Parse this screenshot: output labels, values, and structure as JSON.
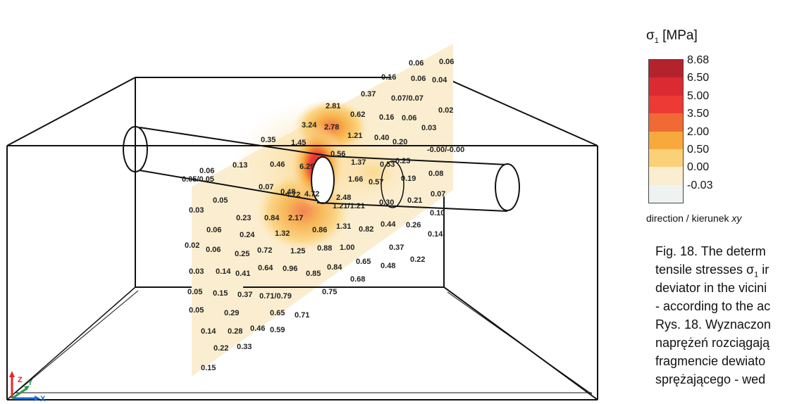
{
  "legend": {
    "symbol": "σ",
    "subscript": "1",
    "unit": "[MPa]",
    "entries": [
      {
        "value": "8.68",
        "color": "#b3232e"
      },
      {
        "value": "6.50",
        "color": "#dc2a33"
      },
      {
        "value": "5.00",
        "color": "#ee3a34"
      },
      {
        "value": "3.50",
        "color": "#f06a36"
      },
      {
        "value": "2.00",
        "color": "#f7a93c"
      },
      {
        "value": "0.50",
        "color": "#fbd177"
      },
      {
        "value": "0.00",
        "color": "#fbeed0"
      },
      {
        "value": "-0.03",
        "color": "#eef3f2"
      }
    ]
  },
  "direction": {
    "prefix": "direction / kierunek ",
    "axis": "xy"
  },
  "caption": {
    "lines": [
      "Fig. 18. The determ",
      "tensile stresses σ",
      "deviator in the vicini",
      "- according to the ac",
      "Rys. 18. Wyznaczon",
      "naprężeń rozciągają",
      "fragmencie dewiato",
      "sprężającego - wed"
    ],
    "sigma_subscript": "1",
    "sigma_tail": " ir"
  },
  "axes": {
    "z": "Z",
    "y": "Y",
    "x": "X"
  },
  "values": [
    "0.06",
    "0.06",
    "0.16",
    "0.06",
    "0.04",
    "0.37",
    "0.07/0.07",
    "2.81",
    "0.02",
    "0.62",
    "0.16",
    "0.06",
    "0.03",
    "3.24",
    "2.78",
    "1.21",
    "0.40",
    "0.20",
    "0.35",
    "1.45",
    "0.56",
    "-0.00/-0.00",
    "1.37",
    "0.53",
    "0.23",
    "0.06",
    "0.05/0.05",
    "0.13",
    "0.46",
    "6.29",
    "1.66",
    "0.57",
    "0.19",
    "0.08",
    "0.07",
    "0.48",
    "4.72",
    "4.72",
    "2.48",
    "1.21/1.21",
    "0.30",
    "0.21",
    "0.07",
    "0.05",
    "0.03",
    "0.23",
    "0.84",
    "2.17",
    "0.10",
    "0.06",
    "0.24",
    "1.32",
    "0.86",
    "1.31",
    "0.82",
    "0.44",
    "0.26",
    "0.14",
    "0.02",
    "0.06",
    "0.25",
    "0.72",
    "1.25",
    "0.88",
    "1.00",
    "0.37",
    "0.22",
    "0.03",
    "0.14",
    "0.41",
    "0.64",
    "0.96",
    "0.85",
    "0.84",
    "0.65",
    "0.48",
    "0.68",
    "0.05",
    "0.15",
    "0.37",
    "0.71/0.79",
    "0.75",
    "0.05",
    "0.29",
    "0.65",
    "0.71",
    "0.14",
    "0.28",
    "0.46",
    "0.59",
    "0.22",
    "0.33",
    "0.15"
  ]
}
